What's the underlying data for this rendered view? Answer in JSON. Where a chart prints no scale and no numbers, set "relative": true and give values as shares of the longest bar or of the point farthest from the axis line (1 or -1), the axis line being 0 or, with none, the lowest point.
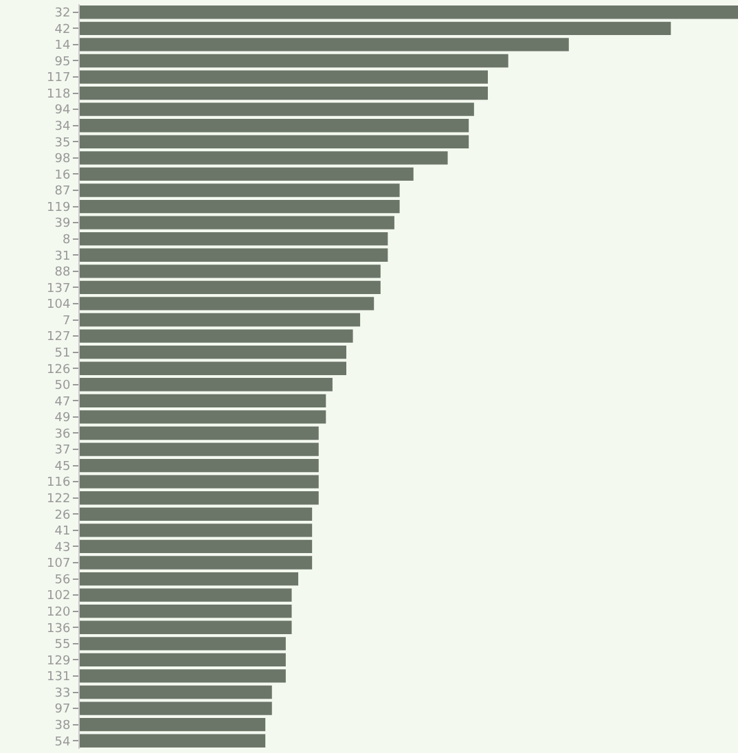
{
  "chart_data": {
    "type": "bar",
    "orientation": "horizontal",
    "relative": true,
    "color": "#6b7568",
    "grid": false,
    "legend": false,
    "categories": [
      "32",
      "42",
      "14",
      "95",
      "117",
      "118",
      "94",
      "34",
      "35",
      "98",
      "16",
      "87",
      "119",
      "39",
      "8",
      "31",
      "88",
      "137",
      "104",
      "7",
      "127",
      "51",
      "126",
      "50",
      "47",
      "49",
      "36",
      "37",
      "45",
      "116",
      "122",
      "26",
      "41",
      "43",
      "107",
      "56",
      "102",
      "120",
      "136",
      "55",
      "129",
      "131",
      "33",
      "97",
      "38",
      "54"
    ],
    "values": [
      1,
      0.898,
      0.743,
      0.651,
      0.62,
      0.62,
      0.599,
      0.591,
      0.591,
      0.559,
      0.507,
      0.486,
      0.486,
      0.478,
      0.468,
      0.468,
      0.457,
      0.457,
      0.447,
      0.426,
      0.415,
      0.405,
      0.405,
      0.384,
      0.374,
      0.374,
      0.363,
      0.363,
      0.363,
      0.363,
      0.363,
      0.353,
      0.353,
      0.353,
      0.353,
      0.332,
      0.322,
      0.322,
      0.322,
      0.313,
      0.313,
      0.313,
      0.292,
      0.292,
      0.282,
      0.282
    ]
  }
}
